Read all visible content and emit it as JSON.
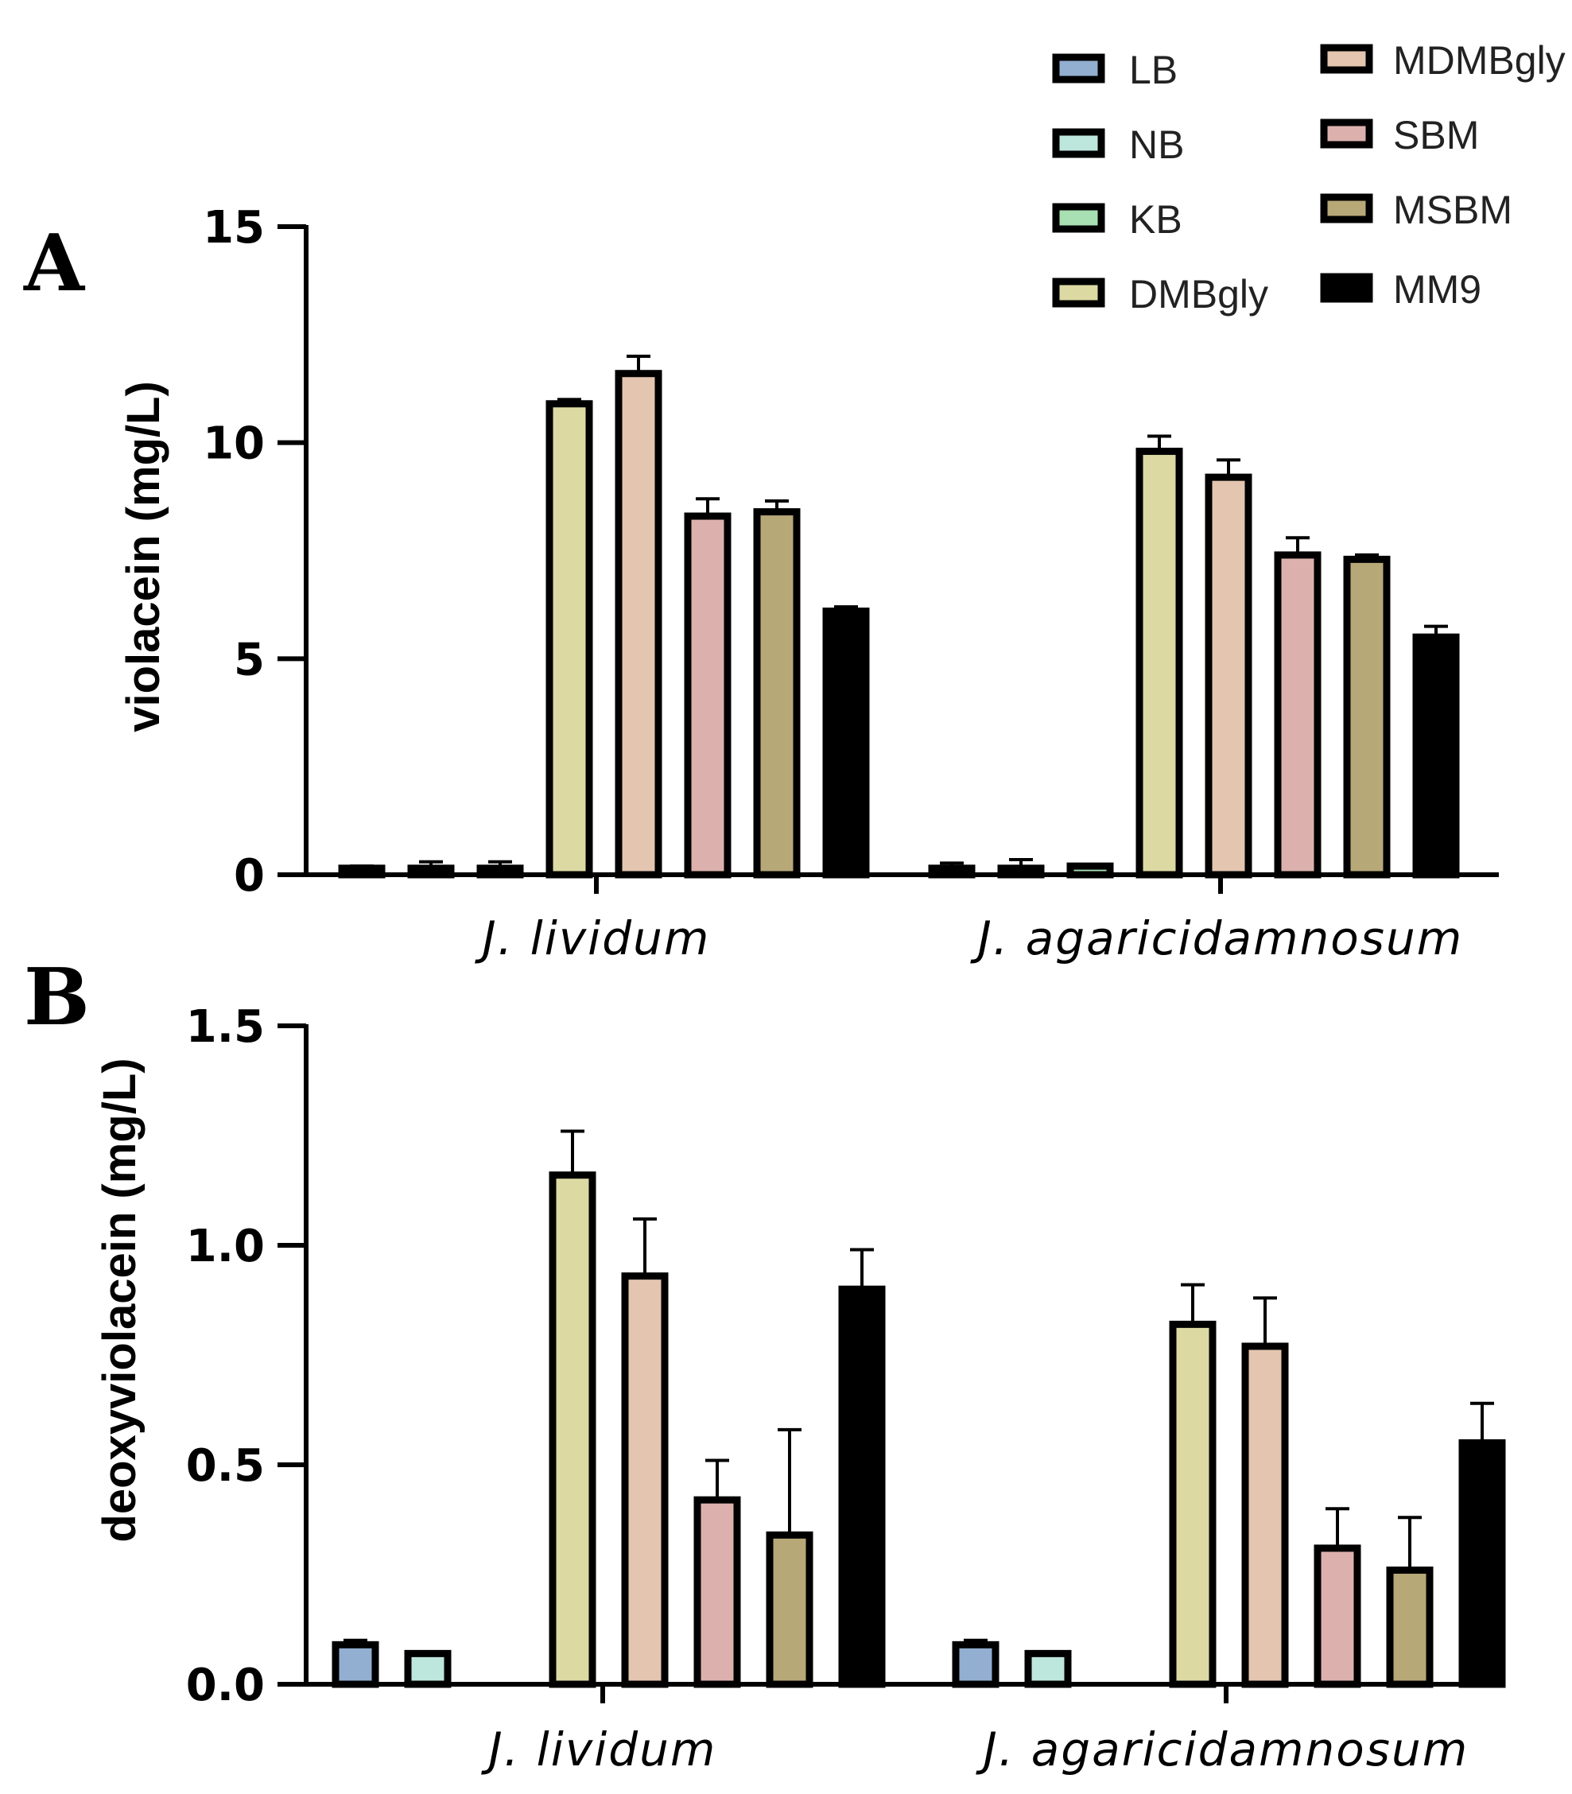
{
  "colors": {
    "LB": "#92aed0",
    "NB": "#bde6dc",
    "KB": "#a9e0b3",
    "DMBgly": "#dcd9a3",
    "MDMBgly": "#e3c5b0",
    "SBM": "#dcb1ad",
    "MSBM": "#b7a878",
    "MM9": "#000000"
  },
  "legend": {
    "left": [
      "LB",
      "NB",
      "KB",
      "DMBgly"
    ],
    "right": [
      "MDMBgly",
      "SBM",
      "MSBM",
      "MM9"
    ]
  },
  "chart_data": [
    {
      "panel": "A",
      "type": "bar",
      "ylabel": "violacein (mg/L)",
      "ylim": [
        0,
        15
      ],
      "yticks": [
        {
          "value": 0,
          "label": "0"
        },
        {
          "value": 5,
          "label": "5"
        },
        {
          "value": 10,
          "label": "10"
        },
        {
          "value": 15,
          "label": "15"
        }
      ],
      "categories": [
        "J. lividum",
        "J. agaricidamnosum"
      ],
      "series": [
        {
          "name": "LB",
          "values": [
            0.15,
            0.15
          ],
          "errors": [
            0.05,
            0.12
          ]
        },
        {
          "name": "NB",
          "values": [
            0.15,
            0.15
          ],
          "errors": [
            0.15,
            0.2
          ]
        },
        {
          "name": "KB",
          "values": [
            0.15,
            0.2
          ],
          "errors": [
            0.15,
            0.03
          ]
        },
        {
          "name": "DMBgly",
          "values": [
            10.9,
            9.8
          ],
          "errors": [
            0.1,
            0.35
          ]
        },
        {
          "name": "MDMBgly",
          "values": [
            11.6,
            9.2
          ],
          "errors": [
            0.4,
            0.4
          ]
        },
        {
          "name": "SBM",
          "values": [
            8.3,
            7.4
          ],
          "errors": [
            0.4,
            0.4
          ]
        },
        {
          "name": "MSBM",
          "values": [
            8.4,
            7.3
          ],
          "errors": [
            0.25,
            0.1
          ]
        },
        {
          "name": "MM9",
          "values": [
            6.1,
            5.5
          ],
          "errors": [
            0.1,
            0.25
          ]
        }
      ]
    },
    {
      "panel": "B",
      "type": "bar",
      "ylabel": "deoxyviolacein (mg/L)",
      "ylim": [
        0,
        1.5
      ],
      "yticks": [
        {
          "value": 0,
          "label": "0.0"
        },
        {
          "value": 0.5,
          "label": "0.5"
        },
        {
          "value": 1.0,
          "label": "1.0"
        },
        {
          "value": 1.5,
          "label": "1.5"
        }
      ],
      "categories": [
        "J. lividum",
        "J. agaricidamnosum"
      ],
      "series": [
        {
          "name": "LB",
          "values": [
            0.09,
            0.09
          ],
          "errors": [
            0.01,
            0.01
          ]
        },
        {
          "name": "NB",
          "values": [
            0.07,
            0.07
          ],
          "errors": [
            0,
            0
          ]
        },
        {
          "name": "KB",
          "values": [
            0,
            0
          ],
          "errors": [
            0,
            0
          ]
        },
        {
          "name": "DMBgly",
          "values": [
            1.16,
            0.82
          ],
          "errors": [
            0.1,
            0.09
          ]
        },
        {
          "name": "MDMBgly",
          "values": [
            0.93,
            0.77
          ],
          "errors": [
            0.13,
            0.11
          ]
        },
        {
          "name": "SBM",
          "values": [
            0.42,
            0.31
          ],
          "errors": [
            0.09,
            0.09
          ]
        },
        {
          "name": "MSBM",
          "values": [
            0.34,
            0.26
          ],
          "errors": [
            0.24,
            0.12
          ]
        },
        {
          "name": "MM9",
          "values": [
            0.9,
            0.55
          ],
          "errors": [
            0.09,
            0.09
          ]
        }
      ]
    }
  ]
}
